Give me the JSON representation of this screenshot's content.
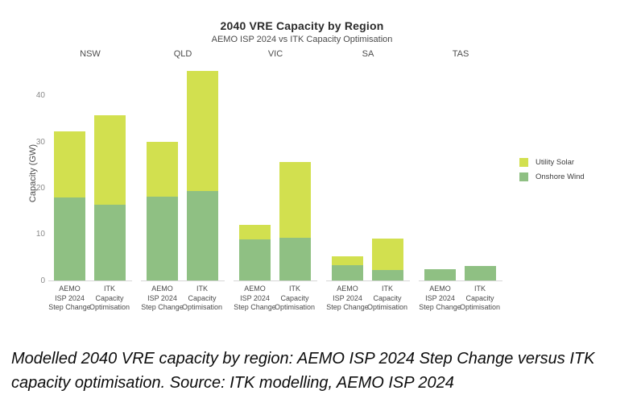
{
  "figure": {
    "title": "2040 VRE Capacity by Region",
    "subtitle": "AEMO ISP 2024 vs ITK Capacity Optimisation",
    "y_axis_label": "Capacity (GW)",
    "caption": "Modelled 2040 VRE capacity by region: AEMO ISP 2024 Step Change versus ITK capacity optimisation. Source: ITK modelling, AEMO ISP 2024"
  },
  "legend": {
    "position": "right",
    "items": [
      {
        "label": "Utility Solar",
        "color": "#d2e04f"
      },
      {
        "label": "Onshore Wind",
        "color": "#8fc083"
      }
    ]
  },
  "chart_data": {
    "type": "bar",
    "stacked": true,
    "title": "2040 VRE Capacity by Region",
    "subtitle": "AEMO ISP 2024 vs ITK Capacity Optimisation",
    "ylabel": "Capacity (GW)",
    "xlabel": "",
    "units": "GW",
    "facets": [
      "NSW",
      "QLD",
      "VIC",
      "SA",
      "TAS"
    ],
    "bar_labels": [
      [
        "AEMO",
        "ISP 2024",
        "Step Change"
      ],
      [
        "ITK",
        "Capacity",
        "Optimisation"
      ]
    ],
    "series": [
      {
        "name": "Onshore Wind",
        "color": "#8fc083",
        "values": [
          [
            18.0,
            16.5
          ],
          [
            18.2,
            19.5
          ],
          [
            9.0,
            9.3
          ],
          [
            3.4,
            2.3
          ],
          [
            2.5,
            3.2
          ]
        ]
      },
      {
        "name": "Utility Solar",
        "color": "#d2e04f",
        "values": [
          [
            14.3,
            19.4
          ],
          [
            11.9,
            26.0
          ],
          [
            3.2,
            16.5
          ],
          [
            1.9,
            6.9
          ],
          [
            0.0,
            0.0
          ]
        ]
      }
    ],
    "totals": [
      [
        32.3,
        35.9
      ],
      [
        30.1,
        45.5
      ],
      [
        12.2,
        25.8
      ],
      [
        5.3,
        9.2
      ],
      [
        2.5,
        3.2
      ]
    ],
    "ylim": [
      0,
      45.5
    ],
    "yticks": [
      0,
      10,
      20,
      30,
      40
    ],
    "grid": false,
    "legend_position": "right"
  }
}
